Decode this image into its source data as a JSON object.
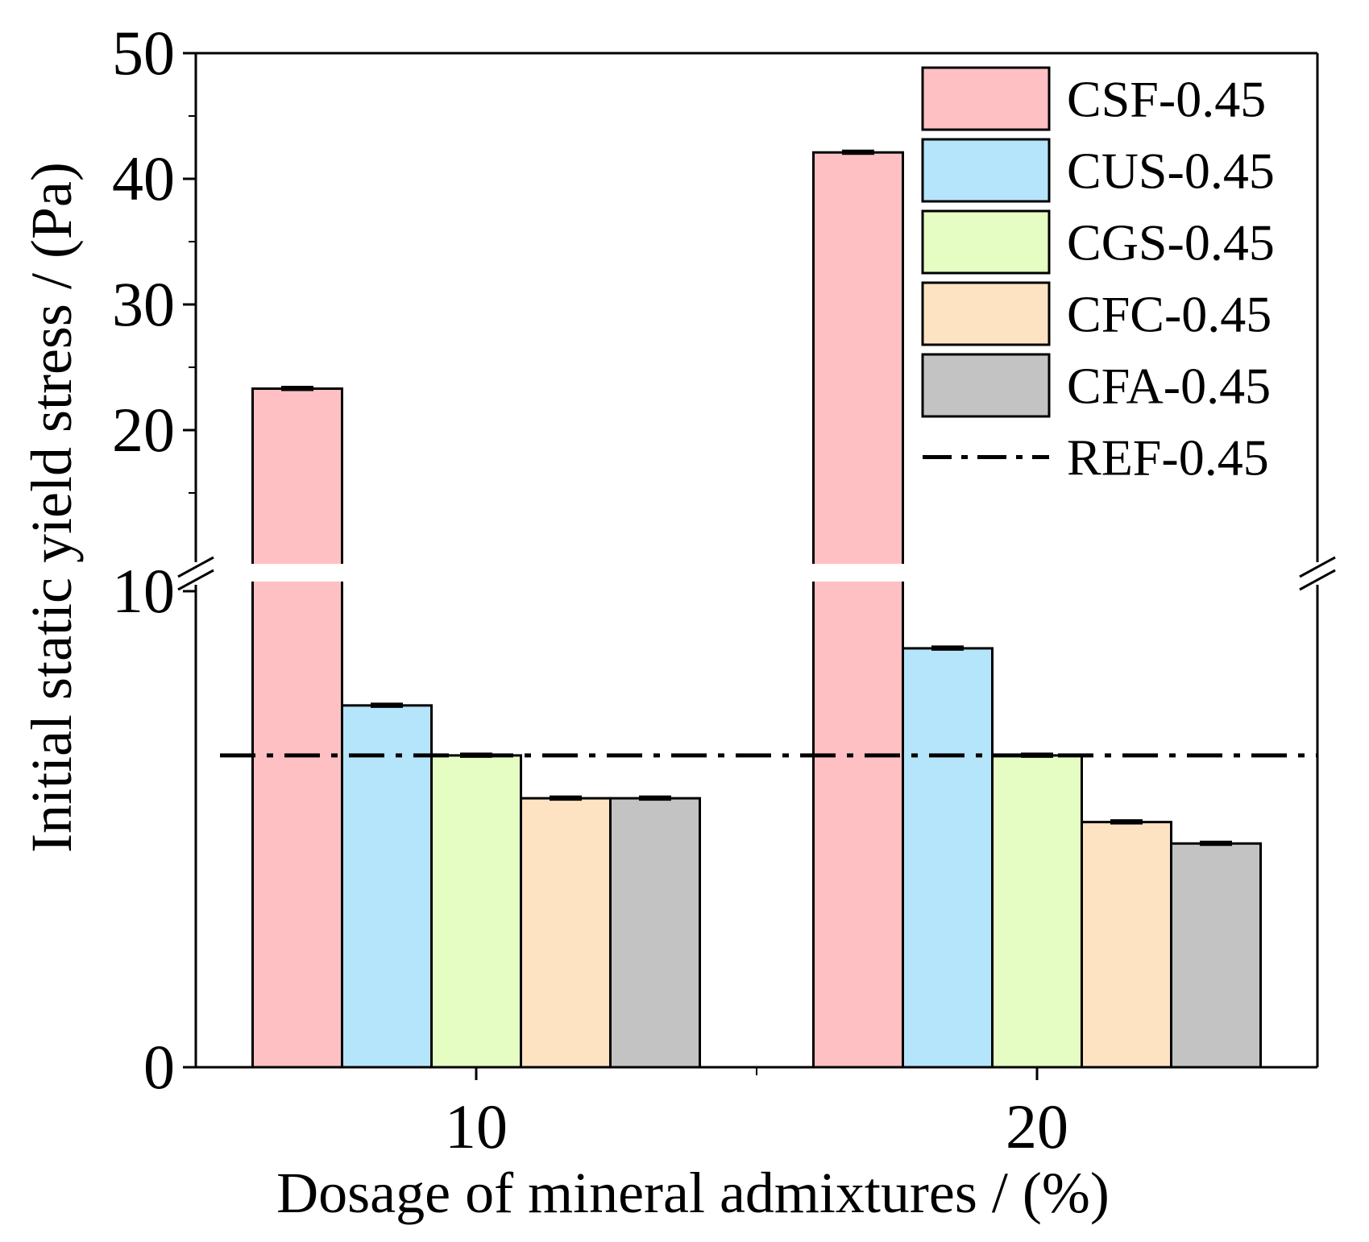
{
  "chart_data": {
    "type": "bar",
    "title": "",
    "xlabel": "Dosage of mineral admixtures / (%)",
    "ylabel": "Initial static yield stress / (Pa)",
    "categories": [
      "10",
      "20"
    ],
    "y_axis_break": {
      "lower_range": [
        0,
        10
      ],
      "upper_range": [
        10,
        50
      ]
    },
    "yticks_lower": [
      0,
      10
    ],
    "yticks_upper": [
      20,
      30,
      40,
      50
    ],
    "series": [
      {
        "name": "CSF-0.45",
        "values": [
          23.3,
          42.1
        ],
        "color": "#FFC0C3"
      },
      {
        "name": "CUS-0.45",
        "values": [
          7.6,
          8.8
        ],
        "color": "#B5E5FA"
      },
      {
        "name": "CGS-0.45",
        "values": [
          6.55,
          6.55
        ],
        "color": "#E5FCC3"
      },
      {
        "name": "CFC-0.45",
        "values": [
          5.65,
          5.15
        ],
        "color": "#FEE3C3"
      },
      {
        "name": "CFA-0.45",
        "values": [
          5.65,
          4.7
        ],
        "color": "#C3C3C3"
      }
    ],
    "reference_lines": [
      {
        "name": "REF-0.45",
        "value": 6.55,
        "style": "dash-dot",
        "color": "#000000"
      }
    ],
    "legend": "top-right"
  }
}
